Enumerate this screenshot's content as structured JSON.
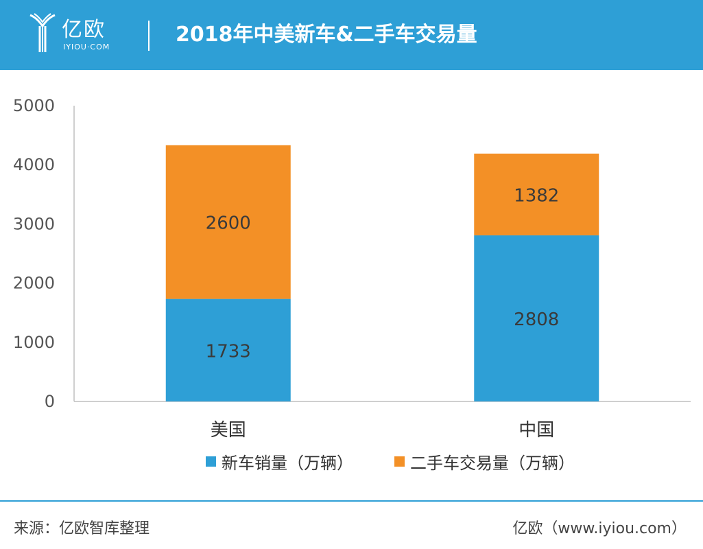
{
  "header": {
    "logo_text": "亿欧",
    "logo_sub": "IYIOU·COM",
    "title": "2018年中美新车&二手车交易量"
  },
  "colors": {
    "header_bg": "#2e9fd6",
    "new_car": "#2e9fd6",
    "used_car": "#f39026"
  },
  "chart_data": {
    "type": "bar",
    "stacked": true,
    "categories": [
      "美国",
      "中国"
    ],
    "series": [
      {
        "name": "新车销量（万辆）",
        "values": [
          1733,
          2808
        ]
      },
      {
        "name": "二手车交易量（万辆）",
        "values": [
          2600,
          1382
        ]
      }
    ],
    "title": "2018年中美新车&二手车交易量",
    "xlabel": "",
    "ylabel": "",
    "ylim": [
      0,
      5000
    ],
    "yticks": [
      0,
      1000,
      2000,
      3000,
      4000,
      5000
    ],
    "grid": false,
    "legend": "bottom"
  },
  "footer": {
    "source": "来源：亿欧智库整理",
    "site": "亿欧（www.iyiou.com）"
  }
}
